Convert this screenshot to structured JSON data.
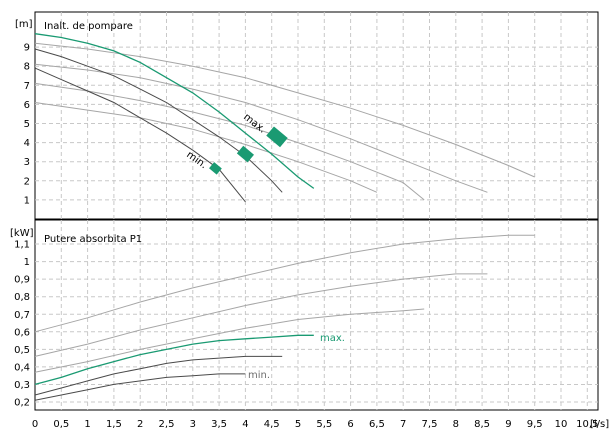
{
  "chart_data": [
    {
      "type": "line",
      "title": "Inalt. de pompare",
      "ylabel": "[m]",
      "xlabel": "[l/s]",
      "xlim": [
        0,
        10.5
      ],
      "ylim": [
        0,
        10.4
      ],
      "x_ticks": [
        "0",
        "0,5",
        "1",
        "1,5",
        "2",
        "2,5",
        "3",
        "3,5",
        "4",
        "4,5",
        "5",
        "5,5",
        "6",
        "6,5",
        "7",
        "7,5",
        "8",
        "8,5",
        "9",
        "9,5",
        "10",
        "10,5"
      ],
      "y_ticks": [
        "1",
        "2",
        "3",
        "4",
        "5",
        "6",
        "7",
        "8",
        "9"
      ],
      "annotations": [
        "max.",
        "min."
      ],
      "colors": {
        "highlight": "#1a9a72",
        "grey": "#a6a6a6",
        "dark": "#4a4a4a"
      },
      "series": [
        {
          "color": "grey",
          "x": [
            0,
            1,
            2,
            3,
            4,
            5,
            6,
            7,
            8,
            9,
            9.5
          ],
          "y": [
            9.2,
            8.9,
            8.5,
            8.0,
            7.4,
            6.6,
            5.8,
            4.9,
            3.9,
            2.8,
            2.2
          ]
        },
        {
          "color": "grey",
          "x": [
            0,
            1,
            2,
            3,
            4,
            5,
            6,
            7,
            8,
            8.6
          ],
          "y": [
            8.1,
            7.8,
            7.4,
            6.8,
            6.1,
            5.2,
            4.2,
            3.1,
            2.0,
            1.4
          ]
        },
        {
          "color": "grey",
          "x": [
            0,
            1,
            2,
            3,
            4,
            5,
            6,
            7,
            7.4
          ],
          "y": [
            7.1,
            6.7,
            6.2,
            5.6,
            4.9,
            4.0,
            3.0,
            1.9,
            1.0
          ]
        },
        {
          "color": "grey",
          "x": [
            0,
            1,
            2,
            3,
            4,
            5,
            6,
            6.5
          ],
          "y": [
            6.1,
            5.7,
            5.3,
            4.7,
            3.9,
            3.0,
            2.0,
            1.4
          ]
        },
        {
          "color": "highlight",
          "x": [
            0,
            0.5,
            1,
            1.5,
            2,
            2.5,
            3,
            3.5,
            4,
            4.5,
            5,
            5.3
          ],
          "y": [
            9.7,
            9.5,
            9.2,
            8.8,
            8.2,
            7.4,
            6.6,
            5.6,
            4.5,
            3.4,
            2.2,
            1.6
          ]
        },
        {
          "color": "dark",
          "x": [
            0,
            0.5,
            1,
            1.5,
            2,
            2.5,
            3,
            3.5,
            4,
            4.5,
            4.7
          ],
          "y": [
            8.9,
            8.5,
            8.0,
            7.5,
            6.8,
            6.1,
            5.2,
            4.3,
            3.3,
            2.0,
            1.4
          ]
        },
        {
          "color": "dark",
          "x": [
            0,
            0.5,
            1,
            1.5,
            2,
            2.5,
            3,
            3.5,
            4
          ],
          "y": [
            7.9,
            7.3,
            6.7,
            6.1,
            5.3,
            4.5,
            3.6,
            2.6,
            0.9
          ]
        }
      ],
      "markers": [
        {
          "x": 3.43,
          "y": 2.65
        },
        {
          "x": 4.0,
          "y": 3.4
        },
        {
          "x": 4.6,
          "y": 4.3
        }
      ]
    },
    {
      "type": "line",
      "title": "Putere absorbita P1",
      "ylabel": "[kW]",
      "xlabel": "[l/s]",
      "xlim": [
        0,
        10.5
      ],
      "ylim": [
        0.15,
        1.22
      ],
      "x_ticks": [
        "0",
        "0,5",
        "1",
        "1,5",
        "2",
        "2,5",
        "3",
        "3,5",
        "4",
        "4,5",
        "5",
        "5,5",
        "6",
        "6,5",
        "7",
        "7,5",
        "8",
        "8,5",
        "9",
        "9,5",
        "10",
        "10,5"
      ],
      "y_ticks": [
        "0,2",
        "0,3",
        "0,4",
        "0,5",
        "0,6",
        "0,7",
        "0,8",
        "0,9",
        "1",
        "1,1"
      ],
      "annotations": [
        "max.",
        "min."
      ],
      "colors": {
        "highlight": "#1a9a72",
        "grey": "#a6a6a6",
        "dark": "#4a4a4a"
      },
      "series": [
        {
          "color": "grey",
          "x": [
            0,
            1,
            2,
            3,
            4,
            5,
            6,
            7,
            8,
            9,
            9.5
          ],
          "y": [
            0.6,
            0.68,
            0.77,
            0.85,
            0.92,
            0.99,
            1.05,
            1.1,
            1.13,
            1.15,
            1.15
          ]
        },
        {
          "color": "grey",
          "x": [
            0,
            1,
            2,
            3,
            4,
            5,
            6,
            7,
            8,
            8.6
          ],
          "y": [
            0.46,
            0.53,
            0.61,
            0.68,
            0.75,
            0.81,
            0.86,
            0.9,
            0.93,
            0.93
          ]
        },
        {
          "color": "grey",
          "x": [
            0,
            1,
            2,
            3,
            4,
            5,
            6,
            7,
            7.4
          ],
          "y": [
            0.37,
            0.43,
            0.5,
            0.56,
            0.62,
            0.67,
            0.7,
            0.72,
            0.73
          ]
        },
        {
          "color": "highlight",
          "x": [
            0,
            0.5,
            1,
            1.5,
            2,
            2.5,
            3,
            3.5,
            4,
            4.5,
            5,
            5.3
          ],
          "y": [
            0.3,
            0.34,
            0.39,
            0.43,
            0.47,
            0.5,
            0.53,
            0.55,
            0.56,
            0.57,
            0.58,
            0.58
          ]
        },
        {
          "color": "dark",
          "x": [
            0,
            0.5,
            1,
            1.5,
            2,
            2.5,
            3,
            3.5,
            4,
            4.5,
            4.7
          ],
          "y": [
            0.24,
            0.28,
            0.32,
            0.36,
            0.39,
            0.42,
            0.44,
            0.45,
            0.46,
            0.46,
            0.46
          ]
        },
        {
          "color": "dark",
          "x": [
            0,
            0.5,
            1,
            1.5,
            2,
            2.5,
            3,
            3.5,
            4
          ],
          "y": [
            0.21,
            0.24,
            0.27,
            0.3,
            0.32,
            0.34,
            0.35,
            0.36,
            0.36
          ]
        }
      ]
    }
  ]
}
